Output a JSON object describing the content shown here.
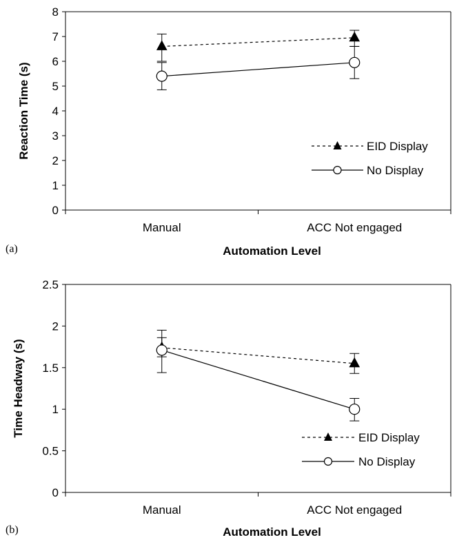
{
  "chart_data": [
    {
      "panel_label": "(a)",
      "type": "line",
      "categories": [
        "Manual",
        "ACC Not engaged"
      ],
      "xlabel": "Automation Level",
      "ylabel": "Reaction Time (s)",
      "ylim": [
        0,
        8
      ],
      "yticks": [
        "0",
        "1",
        "2",
        "3",
        "4",
        "5",
        "6",
        "7",
        "8"
      ],
      "legend_position": "lower-right",
      "series": [
        {
          "name": "EID Display",
          "marker": "triangle",
          "line_style": "dashed",
          "values": [
            6.6,
            6.95
          ],
          "err_low": [
            6.0,
            6.6
          ],
          "err_high": [
            7.1,
            7.25
          ]
        },
        {
          "name": "No Display",
          "marker": "circle",
          "line_style": "solid",
          "values": [
            5.4,
            5.95
          ],
          "err_low": [
            4.85,
            5.3
          ],
          "err_high": [
            5.95,
            6.6
          ]
        }
      ]
    },
    {
      "panel_label": "(b)",
      "type": "line",
      "categories": [
        "Manual",
        "ACC Not engaged"
      ],
      "xlabel": "Automation Level",
      "ylabel": "Time Headway (s)",
      "ylim": [
        0,
        2.5
      ],
      "yticks": [
        "0",
        "0.5",
        "1",
        "1.5",
        "2",
        "2.5"
      ],
      "legend_position": "lower-right",
      "series": [
        {
          "name": "EID Display",
          "marker": "triangle",
          "line_style": "dashed",
          "values": [
            1.74,
            1.55
          ],
          "err_low": [
            1.63,
            1.43
          ],
          "err_high": [
            1.86,
            1.67
          ]
        },
        {
          "name": "No Display",
          "marker": "circle",
          "line_style": "solid",
          "values": [
            1.71,
            1.0
          ],
          "err_low": [
            1.44,
            0.86
          ],
          "err_high": [
            1.95,
            1.13
          ]
        }
      ]
    }
  ]
}
